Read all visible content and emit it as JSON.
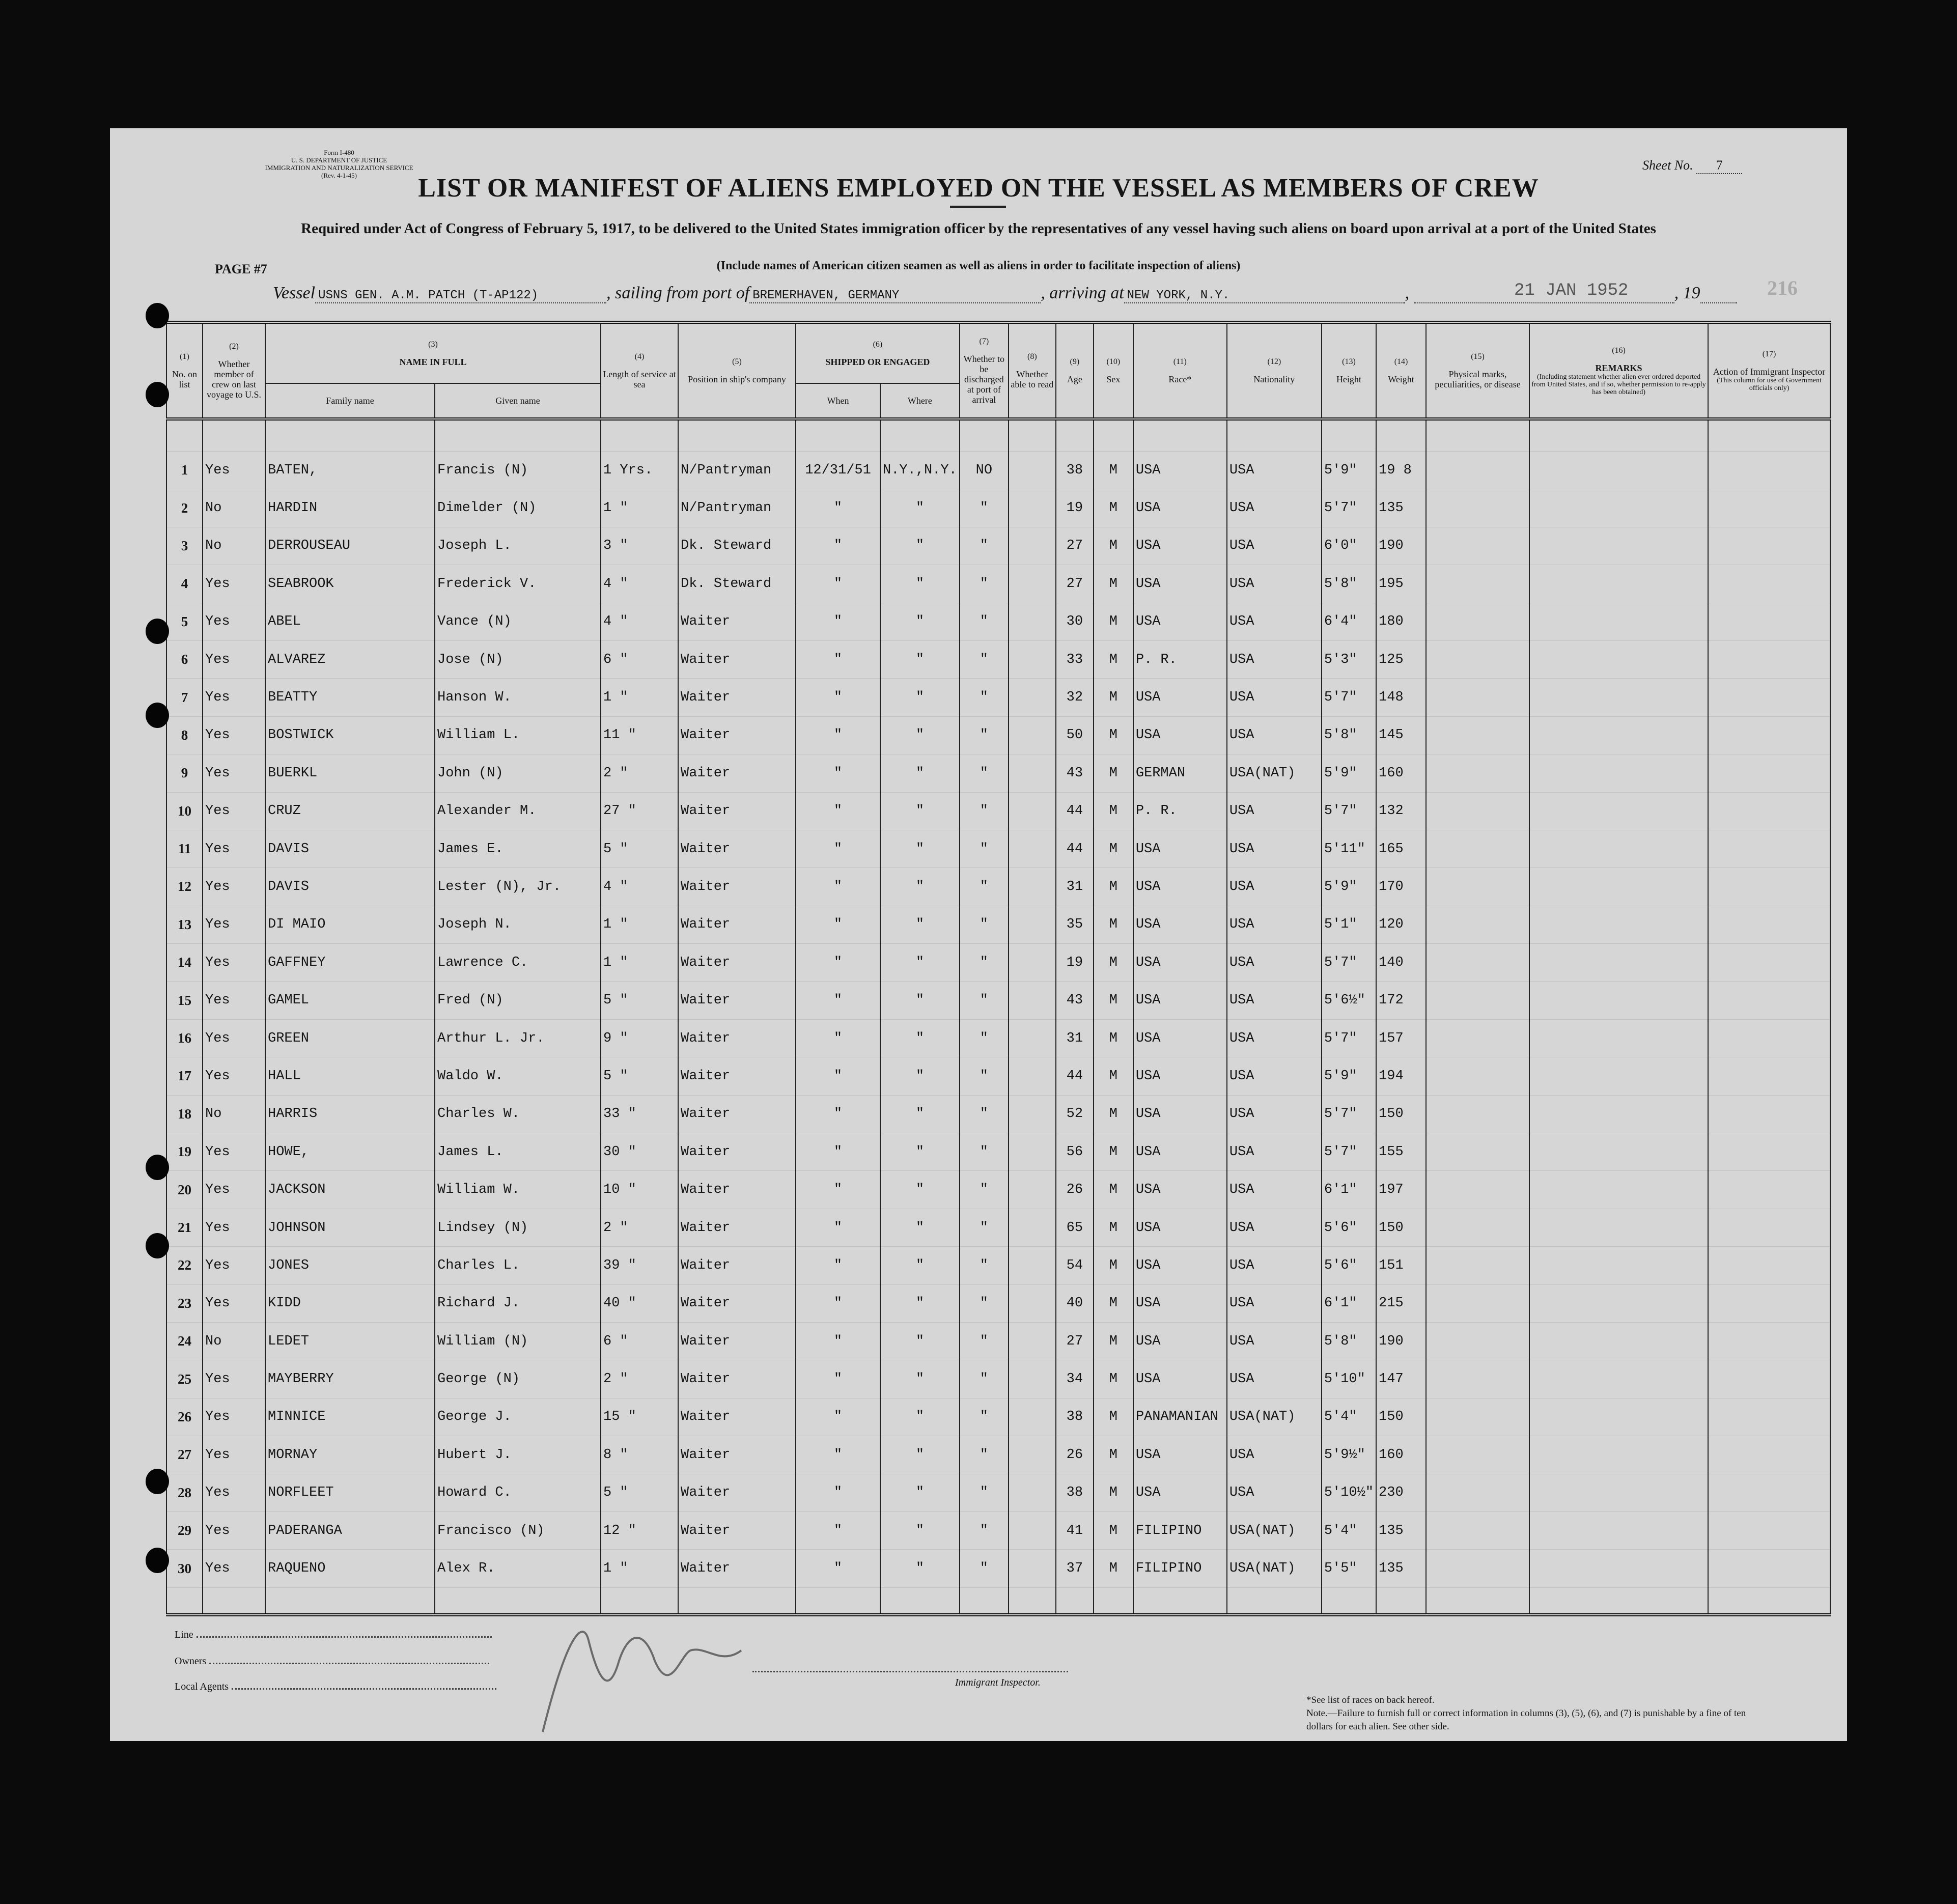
{
  "form": {
    "form_no": "Form I-480",
    "department": "U. S. DEPARTMENT OF JUSTICE",
    "service": "IMMIGRATION AND NATURALIZATION SERVICE",
    "revision": "(Rev. 4-1-45)",
    "sheet_label": "Sheet No.",
    "sheet_no": "7",
    "title": "LIST OR MANIFEST OF ALIENS EMPLOYED ON THE VESSEL AS MEMBERS OF CREW",
    "subtitle": "Required under Act of Congress of February 5, 1917, to be delivered to the United States immigration officer by the representatives of any vessel having such aliens on board upon arrival at a port of the United States",
    "include_note": "(Include names of American citizen seamen as well as aliens in order to facilitate inspection of aliens)",
    "page_label": "PAGE #7",
    "stamp_date": "21 JAN 1952",
    "faint_number": "216"
  },
  "voyage": {
    "vessel_label": "Vessel",
    "vessel": "USNS GEN. A.M. PATCH (T-AP122)",
    "sailing_label": ", sailing from port of",
    "port_from": "BREMERHAVEN, GERMANY",
    "arriving_label": ", arriving at",
    "port_to": "NEW YORK, N.Y.",
    "year_label": ", 19"
  },
  "columns": {
    "c1": {
      "n": "(1)",
      "label": "No. on list"
    },
    "c2": {
      "n": "(2)",
      "label": "Whether member of crew on last voyage to U.S."
    },
    "c3": {
      "n": "(3)",
      "label": "NAME IN FULL",
      "family": "Family name",
      "given": "Given name"
    },
    "c4": {
      "n": "(4)",
      "label": "Length of service at sea"
    },
    "c5": {
      "n": "(5)",
      "label": "Position in ship's company"
    },
    "c6": {
      "n": "(6)",
      "label": "SHIPPED OR ENGAGED",
      "when": "When",
      "where": "Where"
    },
    "c7": {
      "n": "(7)",
      "label": "Whether to be discharged at port of arrival"
    },
    "c8": {
      "n": "(8)",
      "label": "Whether able to read"
    },
    "c9": {
      "n": "(9)",
      "label": "Age"
    },
    "c10": {
      "n": "(10)",
      "label": "Sex"
    },
    "c11": {
      "n": "(11)",
      "label": "Race*"
    },
    "c12": {
      "n": "(12)",
      "label": "Nationality"
    },
    "c13": {
      "n": "(13)",
      "label": "Height"
    },
    "c14": {
      "n": "(14)",
      "label": "Weight"
    },
    "c15": {
      "n": "(15)",
      "label": "Physical marks, peculiarities, or disease"
    },
    "c16": {
      "n": "(16)",
      "label": "REMARKS",
      "sub": "(Including statement whether alien ever ordered deported from United States, and if so, whether permission to re-apply has been obtained)"
    },
    "c17": {
      "n": "(17)",
      "label": "Action of Immigrant Inspector",
      "sub": "(This column for use of Government officials only)"
    }
  },
  "rows": [
    {
      "no": "1",
      "last": "Yes",
      "family": "BATEN,",
      "given": "Francis (N)",
      "length": "1 Yrs.",
      "position": "N/Pantryman",
      "when": "12/31/51",
      "where": "N.Y.,N.Y.",
      "discharged": "NO",
      "age": "38",
      "sex": "M",
      "race": "USA",
      "nationality": "USA",
      "height": "5'9\"",
      "weight": "19 8"
    },
    {
      "no": "2",
      "last": "No",
      "family": "HARDIN",
      "given": "Dimelder (N)",
      "length": "1 \"",
      "position": "N/Pantryman",
      "when": "\"",
      "where": "\"",
      "discharged": "\"",
      "age": "19",
      "sex": "M",
      "race": "USA",
      "nationality": "USA",
      "height": "5'7\"",
      "weight": "135"
    },
    {
      "no": "3",
      "last": "No",
      "family": "DERROUSEAU",
      "given": "Joseph L.",
      "length": "3 \"",
      "position": "Dk. Steward",
      "when": "\"",
      "where": "\"",
      "discharged": "\"",
      "age": "27",
      "sex": "M",
      "race": "USA",
      "nationality": "USA",
      "height": "6'0\"",
      "weight": "190"
    },
    {
      "no": "4",
      "last": "Yes",
      "family": "SEABROOK",
      "given": "Frederick V.",
      "length": "4 \"",
      "position": "Dk. Steward",
      "when": "\"",
      "where": "\"",
      "discharged": "\"",
      "age": "27",
      "sex": "M",
      "race": "USA",
      "nationality": "USA",
      "height": "5'8\"",
      "weight": "195"
    },
    {
      "no": "5",
      "last": "Yes",
      "family": "ABEL",
      "given": "Vance (N)",
      "length": "4 \"",
      "position": "Waiter",
      "when": "\"",
      "where": "\"",
      "discharged": "\"",
      "age": "30",
      "sex": "M",
      "race": "USA",
      "nationality": "USA",
      "height": "6'4\"",
      "weight": "180"
    },
    {
      "no": "6",
      "last": "Yes",
      "family": "ALVAREZ",
      "given": "Jose (N)",
      "length": "6 \"",
      "position": "Waiter",
      "when": "\"",
      "where": "\"",
      "discharged": "\"",
      "age": "33",
      "sex": "M",
      "race": "P. R.",
      "nationality": "USA",
      "height": "5'3\"",
      "weight": "125"
    },
    {
      "no": "7",
      "last": "Yes",
      "family": "BEATTY",
      "given": "Hanson W.",
      "length": "1 \"",
      "position": "Waiter",
      "when": "\"",
      "where": "\"",
      "discharged": "\"",
      "age": "32",
      "sex": "M",
      "race": "USA",
      "nationality": "USA",
      "height": "5'7\"",
      "weight": "148"
    },
    {
      "no": "8",
      "last": "Yes",
      "family": "BOSTWICK",
      "given": "William L.",
      "length": "11 \"",
      "position": "Waiter",
      "when": "\"",
      "where": "\"",
      "discharged": "\"",
      "age": "50",
      "sex": "M",
      "race": "USA",
      "nationality": "USA",
      "height": "5'8\"",
      "weight": "145"
    },
    {
      "no": "9",
      "last": "Yes",
      "family": "BUERKL",
      "given": "John (N)",
      "length": "2 \"",
      "position": "Waiter",
      "when": "\"",
      "where": "\"",
      "discharged": "\"",
      "age": "43",
      "sex": "M",
      "race": "GERMAN",
      "nationality": "USA(NAT)",
      "height": "5'9\"",
      "weight": "160"
    },
    {
      "no": "10",
      "last": "Yes",
      "family": "CRUZ",
      "given": "Alexander M.",
      "length": "27 \"",
      "position": "Waiter",
      "when": "\"",
      "where": "\"",
      "discharged": "\"",
      "age": "44",
      "sex": "M",
      "race": "P. R.",
      "nationality": "USA",
      "height": "5'7\"",
      "weight": "132"
    },
    {
      "no": "11",
      "last": "Yes",
      "family": "DAVIS",
      "given": "James E.",
      "length": "5 \"",
      "position": "Waiter",
      "when": "\"",
      "where": "\"",
      "discharged": "\"",
      "age": "44",
      "sex": "M",
      "race": "USA",
      "nationality": "USA",
      "height": "5'11\"",
      "weight": "165"
    },
    {
      "no": "12",
      "last": "Yes",
      "family": "DAVIS",
      "given": "Lester (N), Jr.",
      "length": "4 \"",
      "position": "Waiter",
      "when": "\"",
      "where": "\"",
      "discharged": "\"",
      "age": "31",
      "sex": "M",
      "race": "USA",
      "nationality": "USA",
      "height": "5'9\"",
      "weight": "170"
    },
    {
      "no": "13",
      "last": "Yes",
      "family": "DI MAIO",
      "given": "Joseph N.",
      "length": "1 \"",
      "position": "Waiter",
      "when": "\"",
      "where": "\"",
      "discharged": "\"",
      "age": "35",
      "sex": "M",
      "race": "USA",
      "nationality": "USA",
      "height": "5'1\"",
      "weight": "120"
    },
    {
      "no": "14",
      "last": "Yes",
      "family": "GAFFNEY",
      "given": "Lawrence C.",
      "length": "1 \"",
      "position": "Waiter",
      "when": "\"",
      "where": "\"",
      "discharged": "\"",
      "age": "19",
      "sex": "M",
      "race": "USA",
      "nationality": "USA",
      "height": "5'7\"",
      "weight": "140"
    },
    {
      "no": "15",
      "last": "Yes",
      "family": "GAMEL",
      "given": "Fred (N)",
      "length": "5 \"",
      "position": "Waiter",
      "when": "\"",
      "where": "\"",
      "discharged": "\"",
      "age": "43",
      "sex": "M",
      "race": "USA",
      "nationality": "USA",
      "height": "5'6½\"",
      "weight": "172"
    },
    {
      "no": "16",
      "last": "Yes",
      "family": "GREEN",
      "given": "Arthur L. Jr.",
      "length": "9 \"",
      "position": "Waiter",
      "when": "\"",
      "where": "\"",
      "discharged": "\"",
      "age": "31",
      "sex": "M",
      "race": "USA",
      "nationality": "USA",
      "height": "5'7\"",
      "weight": "157"
    },
    {
      "no": "17",
      "last": "Yes",
      "family": "HALL",
      "given": "Waldo W.",
      "length": "5 \"",
      "position": "Waiter",
      "when": "\"",
      "where": "\"",
      "discharged": "\"",
      "age": "44",
      "sex": "M",
      "race": "USA",
      "nationality": "USA",
      "height": "5'9\"",
      "weight": "194"
    },
    {
      "no": "18",
      "last": "No",
      "family": "HARRIS",
      "given": "Charles W.",
      "length": "33 \"",
      "position": "Waiter",
      "when": "\"",
      "where": "\"",
      "discharged": "\"",
      "age": "52",
      "sex": "M",
      "race": "USA",
      "nationality": "USA",
      "height": "5'7\"",
      "weight": "150"
    },
    {
      "no": "19",
      "last": "Yes",
      "family": "HOWE,",
      "given": "James L.",
      "length": "30 \"",
      "position": "Waiter",
      "when": "\"",
      "where": "\"",
      "discharged": "\"",
      "age": "56",
      "sex": "M",
      "race": "USA",
      "nationality": "USA",
      "height": "5'7\"",
      "weight": "155"
    },
    {
      "no": "20",
      "last": "Yes",
      "family": "JACKSON",
      "given": "William W.",
      "length": "10 \"",
      "position": "Waiter",
      "when": "\"",
      "where": "\"",
      "discharged": "\"",
      "age": "26",
      "sex": "M",
      "race": "USA",
      "nationality": "USA",
      "height": "6'1\"",
      "weight": "197"
    },
    {
      "no": "21",
      "last": "Yes",
      "family": "JOHNSON",
      "given": "Lindsey (N)",
      "length": "2 \"",
      "position": "Waiter",
      "when": "\"",
      "where": "\"",
      "discharged": "\"",
      "age": "65",
      "sex": "M",
      "race": "USA",
      "nationality": "USA",
      "height": "5'6\"",
      "weight": "150"
    },
    {
      "no": "22",
      "last": "Yes",
      "family": "JONES",
      "given": "Charles L.",
      "length": "39 \"",
      "position": "Waiter",
      "when": "\"",
      "where": "\"",
      "discharged": "\"",
      "age": "54",
      "sex": "M",
      "race": "USA",
      "nationality": "USA",
      "height": "5'6\"",
      "weight": "151"
    },
    {
      "no": "23",
      "last": "Yes",
      "family": "KIDD",
      "given": "Richard J.",
      "length": "40 \"",
      "position": "Waiter",
      "when": "\"",
      "where": "\"",
      "discharged": "\"",
      "age": "40",
      "sex": "M",
      "race": "USA",
      "nationality": "USA",
      "height": "6'1\"",
      "weight": "215"
    },
    {
      "no": "24",
      "last": "No",
      "family": "LEDET",
      "given": "William (N)",
      "length": "6 \"",
      "position": "Waiter",
      "when": "\"",
      "where": "\"",
      "discharged": "\"",
      "age": "27",
      "sex": "M",
      "race": "USA",
      "nationality": "USA",
      "height": "5'8\"",
      "weight": "190"
    },
    {
      "no": "25",
      "last": "Yes",
      "family": "MAYBERRY",
      "given": "George (N)",
      "length": "2 \"",
      "position": "Waiter",
      "when": "\"",
      "where": "\"",
      "discharged": "\"",
      "age": "34",
      "sex": "M",
      "race": "USA",
      "nationality": "USA",
      "height": "5'10\"",
      "weight": "147"
    },
    {
      "no": "26",
      "last": "Yes",
      "family": "MINNICE",
      "given": "George J.",
      "length": "15 \"",
      "position": "Waiter",
      "when": "\"",
      "where": "\"",
      "discharged": "\"",
      "age": "38",
      "sex": "M",
      "race": "PANAMANIAN",
      "nationality": "USA(NAT)",
      "height": "5'4\"",
      "weight": "150"
    },
    {
      "no": "27",
      "last": "Yes",
      "family": "MORNAY",
      "given": "Hubert J.",
      "length": "8 \"",
      "position": "Waiter",
      "when": "\"",
      "where": "\"",
      "discharged": "\"",
      "age": "26",
      "sex": "M",
      "race": "USA",
      "nationality": "USA",
      "height": "5'9½\"",
      "weight": "160"
    },
    {
      "no": "28",
      "last": "Yes",
      "family": "NORFLEET",
      "given": "Howard C.",
      "length": "5 \"",
      "position": "Waiter",
      "when": "\"",
      "where": "\"",
      "discharged": "\"",
      "age": "38",
      "sex": "M",
      "race": "USA",
      "nationality": "USA",
      "height": "5'10½\"",
      "weight": "230"
    },
    {
      "no": "29",
      "last": "Yes",
      "family": "PADERANGA",
      "given": "Francisco (N)",
      "length": "12 \"",
      "position": "Waiter",
      "when": "\"",
      "where": "\"",
      "discharged": "\"",
      "age": "41",
      "sex": "M",
      "race": "FILIPINO",
      "nationality": "USA(NAT)",
      "height": "5'4\"",
      "weight": "135"
    },
    {
      "no": "30",
      "last": "Yes",
      "family": "RAQUENO",
      "given": "Alex R.",
      "length": "1 \"",
      "position": "Waiter",
      "when": "\"",
      "where": "\"",
      "discharged": "\"",
      "age": "37",
      "sex": "M",
      "race": "FILIPINO",
      "nationality": "USA(NAT)",
      "height": "5'5\"",
      "weight": "135"
    }
  ],
  "footer": {
    "line_label": "Line",
    "owners_label": "Owners",
    "agents_label": "Local Agents",
    "inspector_label": "Immigrant Inspector.",
    "races_note": "*See list of races on back hereof.",
    "note": "Note.—Failure to furnish full or correct information in columns (3), (5), (6), and (7) is punishable by a fine of ten dollars for each alien.  See other side."
  }
}
